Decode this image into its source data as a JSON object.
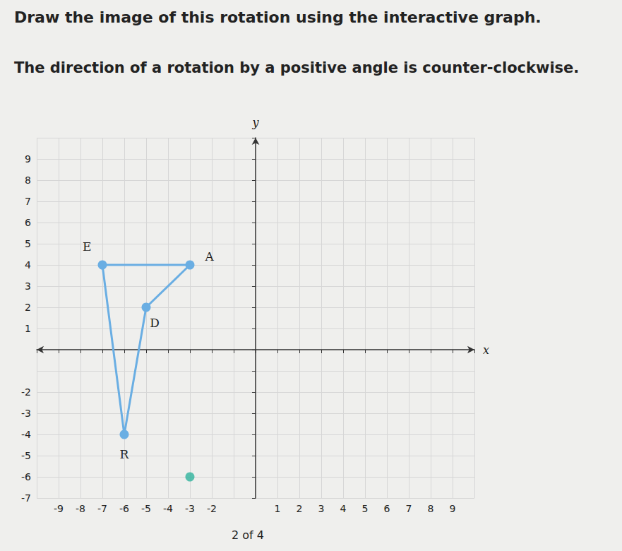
{
  "title": "Draw the image of this rotation using the interactive graph.",
  "subtitle": "The direction of a rotation by a positive angle is counter-clockwise.",
  "footer": "2 of 4",
  "chart_data": {
    "type": "scatter",
    "x_label": "x",
    "y_label": "y",
    "xlim": [
      -10,
      10
    ],
    "ylim": [
      -7,
      10
    ],
    "xticks": [
      -9,
      -8,
      -7,
      -6,
      -5,
      -4,
      -3,
      -2,
      1,
      2,
      3,
      4,
      5,
      6,
      7,
      8,
      9
    ],
    "yticks": [
      -7,
      -6,
      -5,
      -4,
      -3,
      -2,
      1,
      2,
      3,
      4,
      5,
      6,
      7,
      8,
      9
    ],
    "grid": true,
    "series": [
      {
        "type": "line",
        "color": "#6aaee3",
        "labels": [
          "E",
          "A",
          "D",
          "R",
          null
        ],
        "x": [
          -7,
          -3,
          -5,
          -6,
          -7
        ],
        "y": [
          4,
          4,
          2,
          -4,
          4
        ]
      },
      {
        "type": "scatter",
        "color": "#2fb39c",
        "x": [
          -3
        ],
        "y": [
          -6
        ]
      }
    ]
  }
}
